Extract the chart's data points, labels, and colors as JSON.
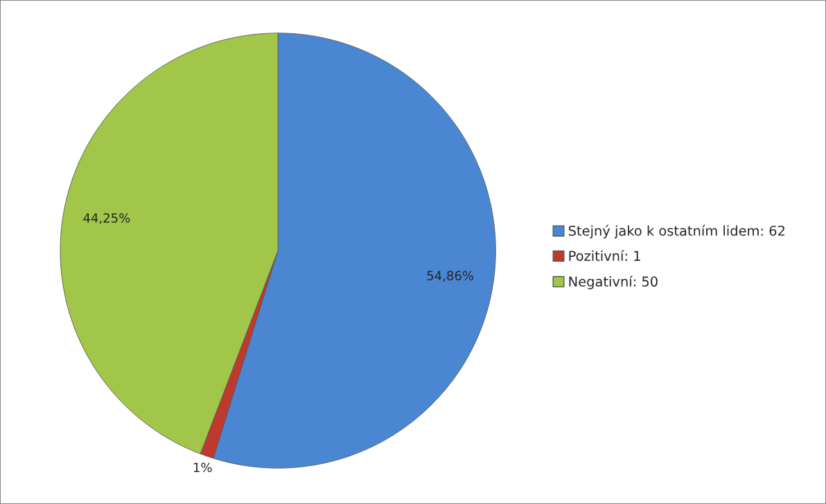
{
  "chart_data": {
    "type": "pie",
    "categories": [
      "Stejný jako k ostatním lidem: 62",
      "Pozitivní: 1",
      "Negativní: 50"
    ],
    "values": [
      54.86,
      1,
      44.25
    ],
    "colors": [
      "#4a86d2",
      "#c0392f",
      "#a2c64a"
    ],
    "value_labels": [
      "54,86%",
      "1%",
      "44,25%"
    ],
    "legend": "right"
  }
}
